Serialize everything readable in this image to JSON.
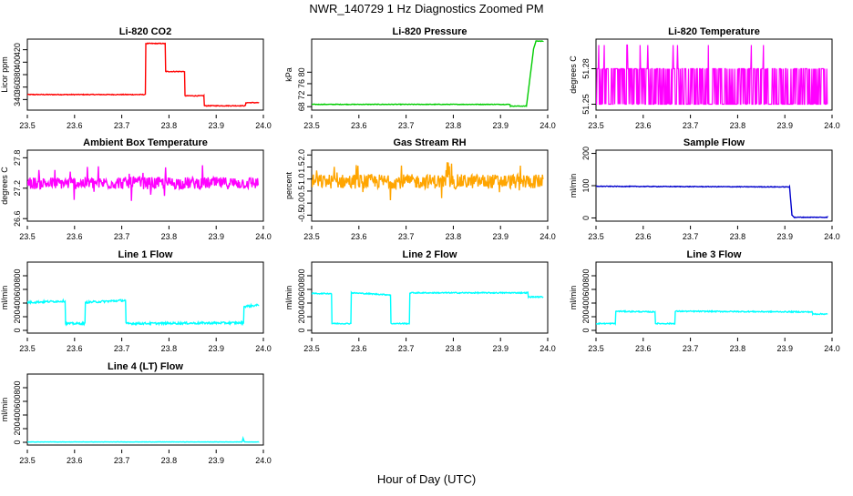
{
  "page": {
    "title": "NWR_140729  1 Hz Diagnostics Zoomed PM",
    "xlabel": "Hour of Day (UTC)"
  },
  "chart_data": [
    {
      "type": "line",
      "title": "Li-820 CO2",
      "ylabel": "Licor ppm",
      "color": "#ff0000",
      "xlim": [
        23.5,
        24.0
      ],
      "ylim": [
        323,
        437
      ],
      "xticks": [
        "23.5",
        "23.6",
        "23.7",
        "23.8",
        "23.9",
        "24.0"
      ],
      "yticks": [
        {
          "v": 340,
          "t": "340"
        },
        {
          "v": 360,
          "t": "360"
        },
        {
          "v": 380,
          "t": "380"
        },
        {
          "v": 400,
          "t": "400"
        },
        {
          "v": 420,
          "t": "420"
        }
      ],
      "style": "step",
      "noise": 0.6,
      "x": [
        23.5,
        23.75,
        23.751,
        23.792,
        23.793,
        23.833,
        23.834,
        23.874,
        23.875,
        23.962,
        23.963,
        23.99
      ],
      "y": [
        348,
        348,
        430,
        430,
        385,
        385,
        346,
        346,
        330,
        330,
        335,
        335
      ]
    },
    {
      "type": "line",
      "title": "Li-820 Pressure",
      "ylabel": "kPa",
      "color": "#00cc00",
      "xlim": [
        23.5,
        24.0
      ],
      "ylim": [
        66.8,
        91.5
      ],
      "xticks": [
        "23.5",
        "23.6",
        "23.7",
        "23.8",
        "23.9",
        "24.0"
      ],
      "yticks": [
        {
          "v": 68,
          "t": "68"
        },
        {
          "v": 72,
          "t": "72"
        },
        {
          "v": 76,
          "t": "76"
        },
        {
          "v": 80,
          "t": "80"
        }
      ],
      "style": "line",
      "noise": 0.1,
      "x": [
        23.5,
        23.92,
        23.921,
        23.955,
        23.97,
        23.975,
        23.99
      ],
      "y": [
        68.8,
        68.8,
        68.2,
        68.2,
        88.0,
        90.8,
        90.8
      ]
    },
    {
      "type": "line",
      "title": "Li-820 Temperature",
      "ylabel": "degrees C",
      "color": "#ff00ff",
      "xlim": [
        23.5,
        24.0
      ],
      "ylim": [
        51.245,
        51.305
      ],
      "xticks": [
        "23.5",
        "23.6",
        "23.7",
        "23.8",
        "23.9",
        "24.0"
      ],
      "yticks": [
        {
          "v": 51.25,
          "t": "51.25"
        },
        {
          "v": 51.28,
          "t": "51.28"
        }
      ],
      "style": "binary",
      "levels": [
        51.25,
        51.28
      ],
      "spike": 51.3,
      "x": [
        23.5,
        23.99
      ],
      "y": [
        51.25,
        51.28
      ]
    },
    {
      "type": "line",
      "title": "Ambient Box Temperature",
      "ylabel": "degrees C",
      "color": "#ff00ff",
      "xlim": [
        23.5,
        24.0
      ],
      "ylim": [
        26.55,
        27.95
      ],
      "xticks": [
        "23.5",
        "23.6",
        "23.7",
        "23.8",
        "23.9",
        "24.0"
      ],
      "yticks": [
        {
          "v": 26.6,
          "t": "26.6"
        },
        {
          "v": 27.2,
          "t": "27.2"
        },
        {
          "v": 27.8,
          "t": "27.8"
        }
      ],
      "style": "noisy",
      "noise": 0.12,
      "x": [
        23.5,
        23.99
      ],
      "y": [
        27.3,
        27.3
      ]
    },
    {
      "type": "line",
      "title": "Gas Stream RH",
      "ylabel": "percent",
      "color": "#ffa500",
      "xlim": [
        23.5,
        24.0
      ],
      "ylim": [
        -0.75,
        2.2
      ],
      "xticks": [
        "23.5",
        "23.6",
        "23.7",
        "23.8",
        "23.9",
        "24.0"
      ],
      "yticks": [
        {
          "v": -0.5,
          "t": "-0.5"
        },
        {
          "v": 0.0,
          "t": "0.0"
        },
        {
          "v": 0.5,
          "t": "0.5"
        },
        {
          "v": 1.0,
          "t": "1.0"
        },
        {
          "v": 1.5,
          "t": "1.5"
        },
        {
          "v": 2.0,
          "t": "2.0"
        }
      ],
      "style": "noisy",
      "noise": 0.3,
      "x": [
        23.5,
        23.99
      ],
      "y": [
        0.9,
        0.9
      ]
    },
    {
      "type": "line",
      "title": "Sample Flow",
      "ylabel": "ml/min",
      "color": "#0000cc",
      "xlim": [
        23.5,
        24.0
      ],
      "ylim": [
        -10,
        210
      ],
      "xticks": [
        "23.5",
        "23.6",
        "23.7",
        "23.8",
        "23.9",
        "24.0"
      ],
      "yticks": [
        {
          "v": 0,
          "t": "0"
        },
        {
          "v": 100,
          "t": "100"
        },
        {
          "v": 200,
          "t": "200"
        }
      ],
      "style": "line",
      "noise": 1.0,
      "x": [
        23.5,
        23.91,
        23.915,
        23.92,
        23.99
      ],
      "y": [
        98,
        96,
        10,
        2,
        2
      ]
    },
    {
      "type": "line",
      "title": "Line 1 Flow",
      "ylabel": "ml/min",
      "color": "#00ffff",
      "xlim": [
        23.5,
        24.0
      ],
      "ylim": [
        -40,
        1000
      ],
      "xticks": [
        "23.5",
        "23.6",
        "23.7",
        "23.8",
        "23.9",
        "24.0"
      ],
      "yticks": [
        {
          "v": 0,
          "t": "0"
        },
        {
          "v": 200,
          "t": "200"
        },
        {
          "v": 400,
          "t": "400"
        },
        {
          "v": 600,
          "t": "600"
        },
        {
          "v": 800,
          "t": "800"
        }
      ],
      "style": "step",
      "noise": 15,
      "x": [
        23.5,
        23.58,
        23.581,
        23.622,
        23.623,
        23.708,
        23.709,
        23.958,
        23.959,
        23.99
      ],
      "y": [
        410,
        430,
        100,
        100,
        410,
        440,
        100,
        110,
        350,
        370
      ]
    },
    {
      "type": "line",
      "title": "Line 2 Flow",
      "ylabel": "ml/min",
      "color": "#00ffff",
      "xlim": [
        23.5,
        24.0
      ],
      "ylim": [
        -40,
        1000
      ],
      "xticks": [
        "23.5",
        "23.6",
        "23.7",
        "23.8",
        "23.9",
        "24.0"
      ],
      "yticks": [
        {
          "v": 0,
          "t": "0"
        },
        {
          "v": 200,
          "t": "200"
        },
        {
          "v": 400,
          "t": "400"
        },
        {
          "v": 600,
          "t": "600"
        },
        {
          "v": 800,
          "t": "800"
        }
      ],
      "style": "step",
      "noise": 8,
      "x": [
        23.5,
        23.542,
        23.543,
        23.583,
        23.584,
        23.667,
        23.668,
        23.707,
        23.708,
        23.958,
        23.959,
        23.99
      ],
      "y": [
        540,
        540,
        100,
        100,
        550,
        520,
        100,
        100,
        550,
        550,
        490,
        490
      ]
    },
    {
      "type": "line",
      "title": "Line 3 Flow",
      "ylabel": "ml/min",
      "color": "#00ffff",
      "xlim": [
        23.5,
        24.0
      ],
      "ylim": [
        -40,
        1000
      ],
      "xticks": [
        "23.5",
        "23.6",
        "23.7",
        "23.8",
        "23.9",
        "24.0"
      ],
      "yticks": [
        {
          "v": 0,
          "t": "0"
        },
        {
          "v": 200,
          "t": "200"
        },
        {
          "v": 400,
          "t": "400"
        },
        {
          "v": 600,
          "t": "600"
        },
        {
          "v": 800,
          "t": "800"
        }
      ],
      "style": "step",
      "noise": 8,
      "x": [
        23.5,
        23.541,
        23.542,
        23.625,
        23.626,
        23.667,
        23.668,
        23.958,
        23.959,
        23.99
      ],
      "y": [
        100,
        100,
        280,
        270,
        100,
        100,
        280,
        270,
        240,
        240
      ]
    },
    {
      "type": "line",
      "title": "Line 4 (LT) Flow",
      "ylabel": "ml/min",
      "color": "#00ffff",
      "xlim": [
        23.5,
        24.0
      ],
      "ylim": [
        -40,
        1000
      ],
      "xticks": [
        "23.5",
        "23.6",
        "23.7",
        "23.8",
        "23.9",
        "24.0"
      ],
      "yticks": [
        {
          "v": 0,
          "t": "0"
        },
        {
          "v": 200,
          "t": "200"
        },
        {
          "v": 400,
          "t": "400"
        },
        {
          "v": 600,
          "t": "600"
        },
        {
          "v": 800,
          "t": "800"
        }
      ],
      "style": "line",
      "noise": 2,
      "x": [
        23.5,
        23.955,
        23.957,
        23.96,
        23.99
      ],
      "y": [
        5,
        5,
        60,
        5,
        5
      ]
    }
  ]
}
